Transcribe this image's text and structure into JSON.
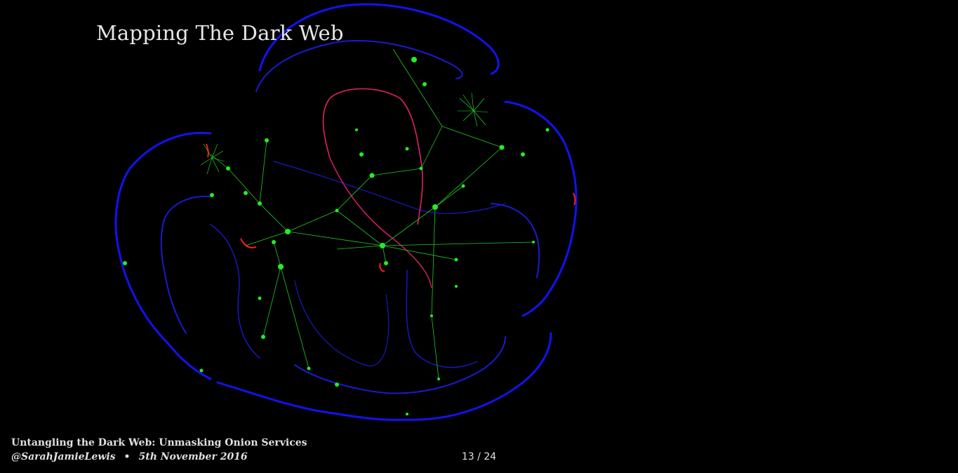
{
  "slide": {
    "title": "Mapping The Dark Web",
    "current": "13",
    "total": "24"
  },
  "footer": {
    "talk_title": "Untangling the Dark Web: Unmasking Onion Services",
    "author": "@SarahJamieLewis",
    "separator": "•",
    "date": "5th November 2016"
  },
  "graph": {
    "colors": {
      "cluster_edges": "#1010e8",
      "link_nodes": "#22ee22",
      "highlight": "#e0206a",
      "alert": "#ff1a1a"
    }
  }
}
